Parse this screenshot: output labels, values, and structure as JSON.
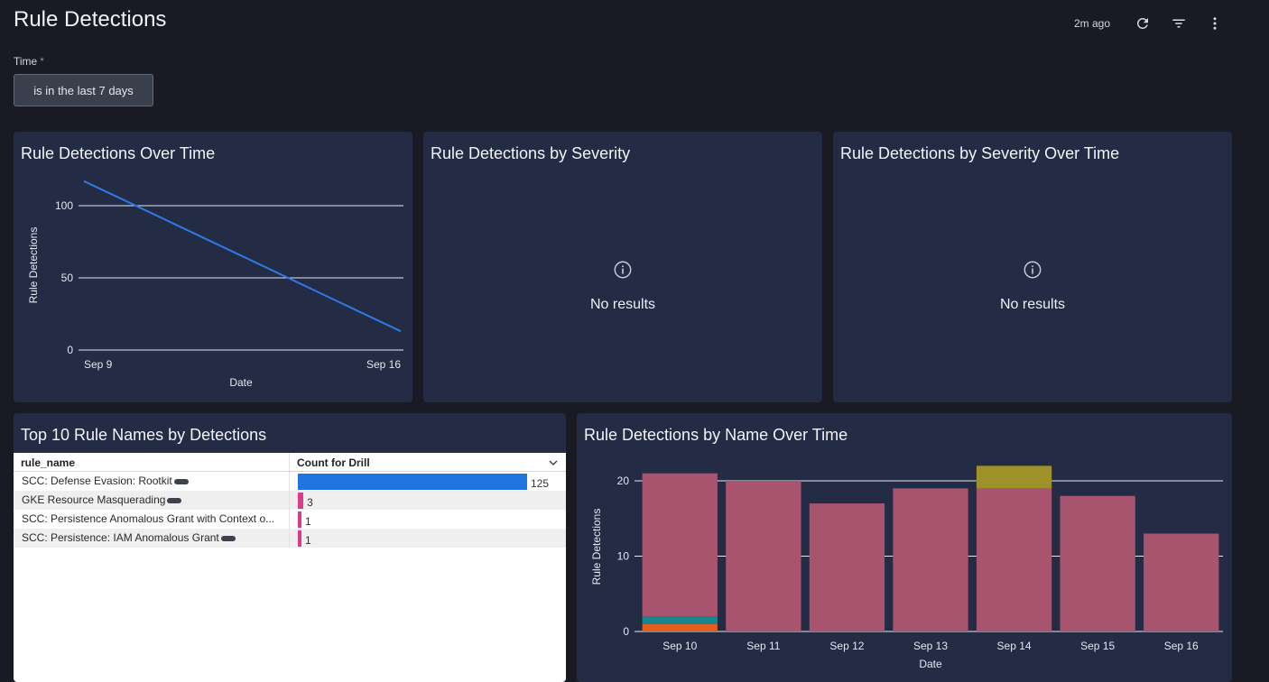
{
  "header": {
    "title": "Rule Detections",
    "updated": "2m ago",
    "icons": [
      "refresh-icon",
      "filter-icon",
      "more-vert-icon"
    ]
  },
  "filters": {
    "time_label": "Time",
    "required_mark": "*",
    "time_value": "is in the last 7 days"
  },
  "tiles": {
    "over_time": {
      "title": "Rule Detections Over Time",
      "chart_data": {
        "type": "line",
        "x": [
          "Sep 9",
          "Sep 16"
        ],
        "series": [
          {
            "values": [
              117,
              13
            ],
            "color": "#2f7be6"
          }
        ],
        "xlabel": "Date",
        "ylabel": "Rule Detections",
        "ylim": [
          0,
          125
        ],
        "yticks": [
          0,
          50,
          100
        ],
        "grid": true
      }
    },
    "by_severity": {
      "title": "Rule Detections by Severity",
      "message": "No results"
    },
    "severity_over_time": {
      "title": "Rule Detections by Severity Over Time",
      "message": "No results"
    },
    "top10": {
      "title": "Top 10 Rule Names by Detections",
      "columns": [
        "rule_name",
        "Count for Drill"
      ],
      "rows": [
        {
          "name": "SCC: Defense Evasion: Rootkit",
          "count": 125,
          "display": "125",
          "color": "#1f74e0"
        },
        {
          "name": "GKE Resource Masquerading",
          "count": 3,
          "display": "3",
          "color": "#d93c8a"
        },
        {
          "name": "SCC: Persistence Anomalous Grant with Context o...",
          "count": 1,
          "display": "1",
          "color": "#d93c8a"
        },
        {
          "name": "SCC: Persistence: IAM Anomalous Grant",
          "count": 1,
          "display": "1",
          "color": "#d93c8a"
        }
      ]
    },
    "by_name_over_time": {
      "title": "Rule Detections by Name Over Time",
      "chart_data": {
        "type": "bar",
        "stacked": true,
        "categories": [
          "Sep 10",
          "Sep 11",
          "Sep 12",
          "Sep 13",
          "Sep 14",
          "Sep 15",
          "Sep 16"
        ],
        "series": [
          {
            "values": [
              1,
              0,
              0,
              0,
              0,
              0,
              0
            ],
            "color": "#e35e1c"
          },
          {
            "values": [
              1,
              0,
              0,
              0,
              0,
              0,
              0
            ],
            "color": "#19858f"
          },
          {
            "values": [
              19,
              20,
              17,
              19,
              19,
              18,
              13
            ],
            "color": "#a8546f"
          },
          {
            "values": [
              0,
              0,
              0,
              0,
              3,
              0,
              0
            ],
            "color": "#9e9129"
          }
        ],
        "xlabel": "Date",
        "ylabel": "Rule Detections",
        "ylim": [
          0,
          23
        ],
        "yticks": [
          0,
          10,
          20
        ],
        "grid": true
      }
    }
  }
}
